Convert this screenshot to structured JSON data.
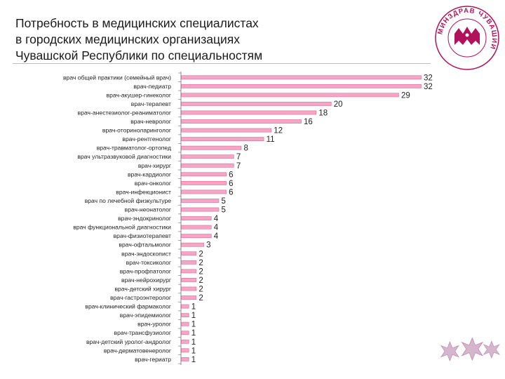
{
  "header": {
    "title": "Потребность в медицинских специалистах\nв городских медицинских организациях\nЧувашской Республики по специальностям",
    "logo_text": "МИНЗДРАВ ЧУВАШИИ"
  },
  "chart_data": {
    "type": "bar",
    "orientation": "horizontal",
    "title": "",
    "xlabel": "",
    "ylabel": "",
    "xlim": [
      0,
      32
    ],
    "grid": false,
    "legend": "none",
    "bar_color": "#f4a6c4",
    "bar_border": "#d46f9a",
    "categories": [
      "врач общей практики (семейный врач)",
      "врач-педиатр",
      "врач-акушер-гинеколог",
      "врач-терапевт",
      "врач-анестезиолог-реаниматолог",
      "врач-невролог",
      "врач-оториноларинголог",
      "врач-рентгенолог",
      "врач-травматолог-ортопед",
      "врач ультразвуковой диагностики",
      "врач-хирург",
      "врач-кардиолог",
      "врач-онколог",
      "врач-инфекционист",
      "врач по лечебной физкультуре",
      "врач-неонатолог",
      "врач-эндокринолог",
      "врач функциональной диагностики",
      "врач-физиотерапевт",
      "врач-офтальмолог",
      "врач-эндоскопист",
      "врач-токсиколог",
      "врач-профпатолог",
      "врач-нейрохирург",
      "врач-детский хирург",
      "врач-гастроэнтеролог",
      "врач-клинический фармаколог",
      "врач-эпидемиолог",
      "врач-уролог",
      "врач-трансфузиолог",
      "врач-детский уролог-андролог",
      "врач-дерматовенеролог",
      "врач-гериатр"
    ],
    "values": [
      32,
      32,
      29,
      20,
      18,
      16,
      12,
      11,
      8,
      7,
      7,
      6,
      6,
      6,
      5,
      5,
      4,
      4,
      4,
      3,
      2,
      2,
      2,
      2,
      2,
      2,
      1,
      1,
      1,
      1,
      1,
      1,
      1
    ]
  }
}
